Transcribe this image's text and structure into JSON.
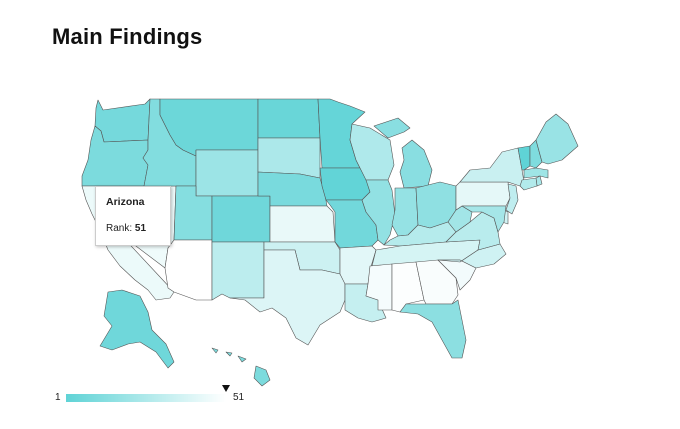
{
  "title": "Main Findings",
  "tooltip": {
    "state": "Arizona",
    "rank_label": "Rank:",
    "rank_value": "51"
  },
  "legend": {
    "min": "1",
    "max": "51",
    "color_min": "#5fd3d6",
    "color_max": "#ffffff",
    "selected_rank": 51
  },
  "states": {
    "WA": 8,
    "OR": 10,
    "CA": 45,
    "NV": 46,
    "ID": 12,
    "MT": 5,
    "WY": 20,
    "UT": 13,
    "AZ": 51,
    "CO": 6,
    "NM": 30,
    "ND": 4,
    "SD": 25,
    "NE": 9,
    "KS": 44,
    "OK": 35,
    "TX": 40,
    "MN": 3,
    "IA": 2,
    "MO": 7,
    "AR": 42,
    "LA": 33,
    "WI": 26,
    "IL": 17,
    "MI": 14,
    "IN": 18,
    "OH": 16,
    "KY": 28,
    "TN": 38,
    "MS": 48,
    "AL": 50,
    "GA": 49,
    "FL": 15,
    "SC": 47,
    "NC": 36,
    "VA": 29,
    "WV": 22,
    "PA": 43,
    "NY": 34,
    "VT": 1,
    "NH": 11,
    "ME": 19,
    "MA": 21,
    "RI": 24,
    "CT": 27,
    "NJ": 31,
    "DE": 37,
    "MD": 23,
    "AK": 6,
    "HI": 10
  }
}
